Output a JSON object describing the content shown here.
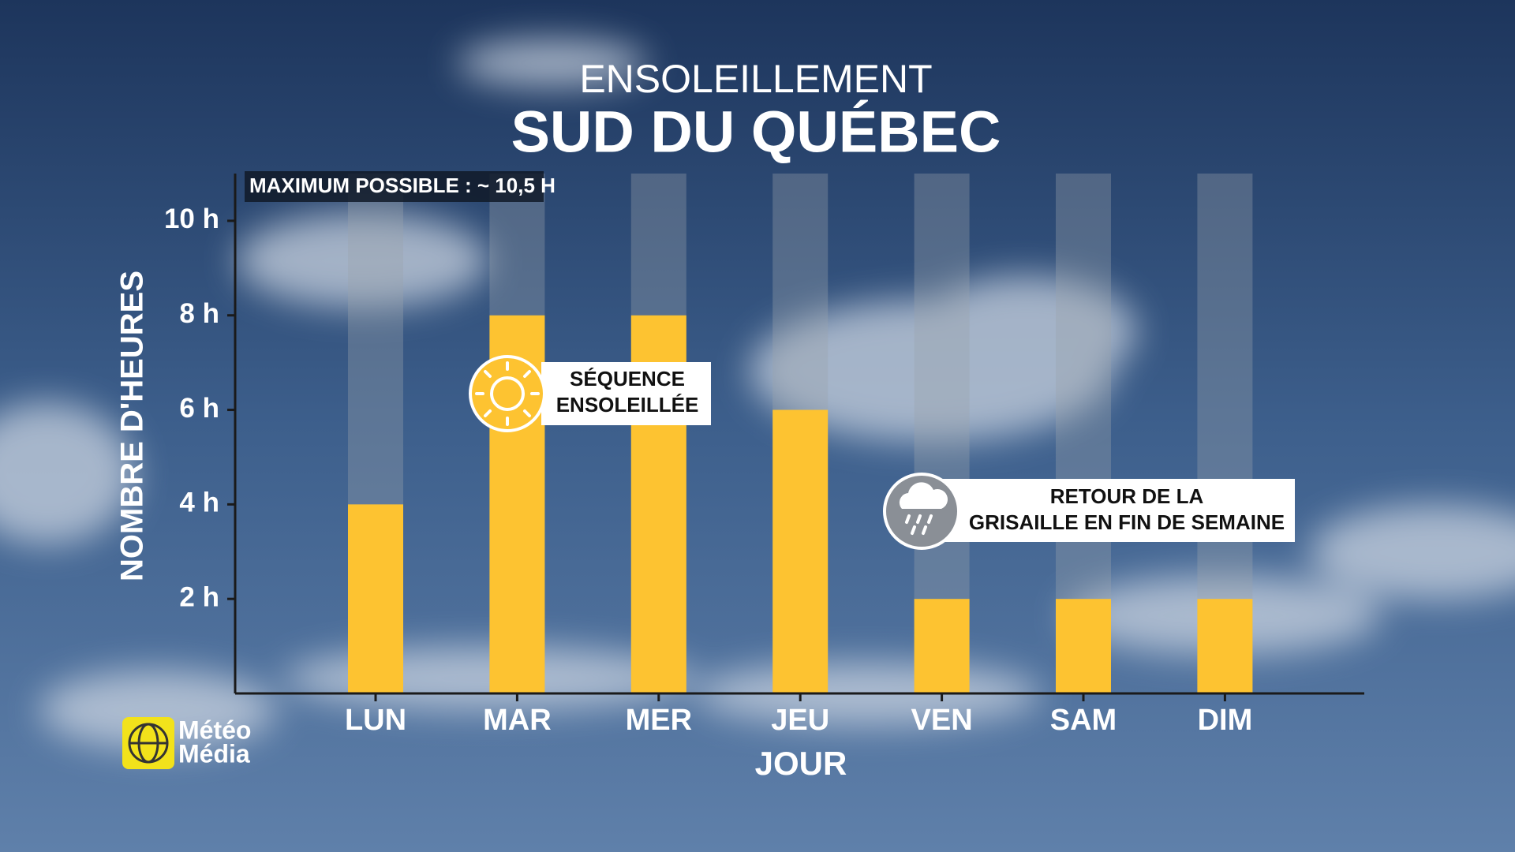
{
  "chart_data": {
    "type": "bar",
    "title": "ENSOLEILLEMENT",
    "subtitle": "SUD DU QUÉBEC",
    "x_label": "JOUR",
    "y_label": "NOMBRE D'HEURES",
    "categories": [
      "LUN",
      "MAR",
      "MER",
      "JEU",
      "VEN",
      "SAM",
      "DIM"
    ],
    "values": [
      4,
      8,
      8,
      6,
      2,
      2,
      2
    ],
    "color": "#fdc331",
    "ylim": [
      0,
      11
    ],
    "yticks": [
      {
        "value": 2,
        "label": "2 h"
      },
      {
        "value": 4,
        "label": "4 h"
      },
      {
        "value": 6,
        "label": "6 h"
      },
      {
        "value": 8,
        "label": "8 h"
      },
      {
        "value": 10,
        "label": "10 h"
      }
    ],
    "max_note": "MAXIMUM POSSIBLE : ~ 10,5 H",
    "annotations": [
      {
        "lines": [
          "SÉQUENCE",
          "ENSOLEILLÉE"
        ]
      },
      {
        "lines": [
          "RETOUR DE LA",
          "GRISAILLE EN FIN DE SEMAINE"
        ]
      }
    ],
    "logo": [
      "Météo",
      "Média"
    ]
  }
}
